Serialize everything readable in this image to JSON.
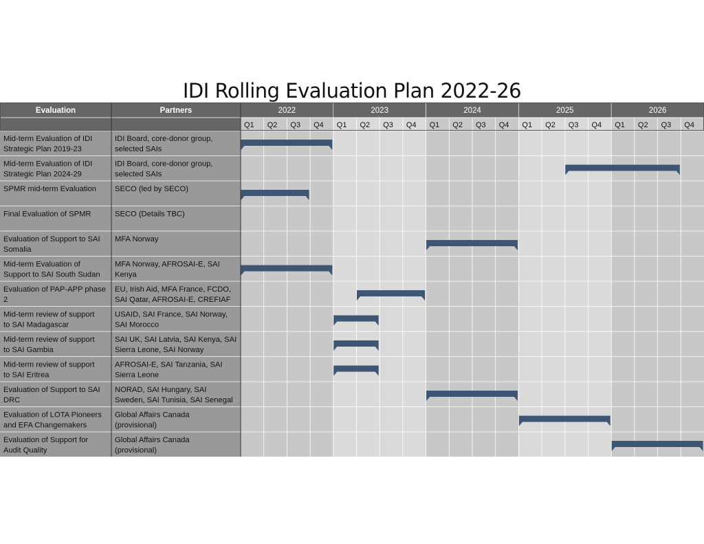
{
  "page": {
    "title": "IDI Rolling Evaluation Plan 2022-26"
  },
  "chart_data": {
    "type": "table",
    "subtype": "gantt",
    "title": "IDI Rolling Evaluation Plan 2022-26",
    "columns": {
      "evaluation": "Evaluation",
      "partners": "Partners"
    },
    "years": [
      "2022",
      "2023",
      "2024",
      "2025",
      "2026"
    ],
    "quarters": [
      "Q1",
      "Q2",
      "Q3",
      "Q4"
    ],
    "colors": {
      "header": "#666666",
      "label_cells": "#999999",
      "band_a": "#c8c8c8",
      "band_b": "#dadada",
      "bar": "#3e5673"
    },
    "rows": [
      {
        "evaluation": [
          "Mid-term Evaluation of IDI",
          "Strategic Plan 2019-23"
        ],
        "partners": [
          "IDI Board, core-donor group,",
          "selected SAIs"
        ],
        "start": "2022 Q1",
        "end": "2022 Q4"
      },
      {
        "evaluation": [
          "Mid-term Evaluation of IDI",
          "Strategic Plan 2024-29"
        ],
        "partners": [
          "IDI Board, core-donor group,",
          "selected SAIs"
        ],
        "start": "2025 Q3",
        "end": "2026 Q3"
      },
      {
        "evaluation": [
          "SPMR mid-term Evaluation"
        ],
        "partners": [
          "SECO (led by SECO)"
        ],
        "start": "2022 Q1",
        "end": "2022 Q3"
      },
      {
        "evaluation": [
          "Final Evaluation of SPMR"
        ],
        "partners": [
          "SECO (Details TBC)"
        ],
        "start": null,
        "end": null
      },
      {
        "evaluation": [
          "Evaluation of Support to SAI",
          "Somalia"
        ],
        "partners": [
          "MFA Norway"
        ],
        "start": "2024 Q1",
        "end": "2024 Q4"
      },
      {
        "evaluation": [
          "Mid-term Evaluation of",
          "Support to SAI South Sudan"
        ],
        "partners": [
          "MFA Norway, AFROSAI-E, SAI",
          "Kenya"
        ],
        "start": "2022 Q1",
        "end": "2022 Q4"
      },
      {
        "evaluation": [
          "Evaluation of PAP-APP phase",
          "2"
        ],
        "partners": [
          "EU, Irish Aid, MFA France, FCDO,",
          "SAI Qatar, AFROSAI-E, CREFIAF"
        ],
        "start": "2023 Q2",
        "end": "2023 Q4"
      },
      {
        "evaluation": [
          "Mid-term review of support",
          "to SAI Madagascar"
        ],
        "partners": [
          "USAID, SAI France, SAI Norway,",
          "SAI Morocco"
        ],
        "start": "2023 Q1",
        "end": "2023 Q2"
      },
      {
        "evaluation": [
          "Mid-term review of support",
          "to SAI Gambia"
        ],
        "partners": [
          "SAI UK, SAI Latvia, SAI Kenya, SAI",
          "Sierra Leone, SAI Norway"
        ],
        "start": "2023 Q1",
        "end": "2023 Q2"
      },
      {
        "evaluation": [
          "Mid-term review of support",
          "to SAI Eritrea"
        ],
        "partners": [
          "AFROSAI-E, SAI Tanzania, SAI",
          "Sierra Leone"
        ],
        "start": "2023 Q1",
        "end": "2023 Q2"
      },
      {
        "evaluation": [
          "Evaluation of Support to SAI",
          "DRC"
        ],
        "partners": [
          "NORAD, SAI Hungary, SAI",
          "Sweden, SAI Tunisia, SAI Senegal"
        ],
        "start": "2024 Q1",
        "end": "2024 Q4"
      },
      {
        "evaluation": [
          "Evaluation of LOTA Pioneers",
          "and EFA Changemakers"
        ],
        "partners": [
          "Global Affairs Canada",
          "(provisional)"
        ],
        "start": "2025 Q1",
        "end": "2025 Q4"
      },
      {
        "evaluation": [
          "Evaluation of Support for",
          "Audit Quality"
        ],
        "partners": [
          "Global Affairs Canada",
          "(provisional)"
        ],
        "start": "2026 Q1",
        "end": "2026 Q4"
      }
    ]
  }
}
